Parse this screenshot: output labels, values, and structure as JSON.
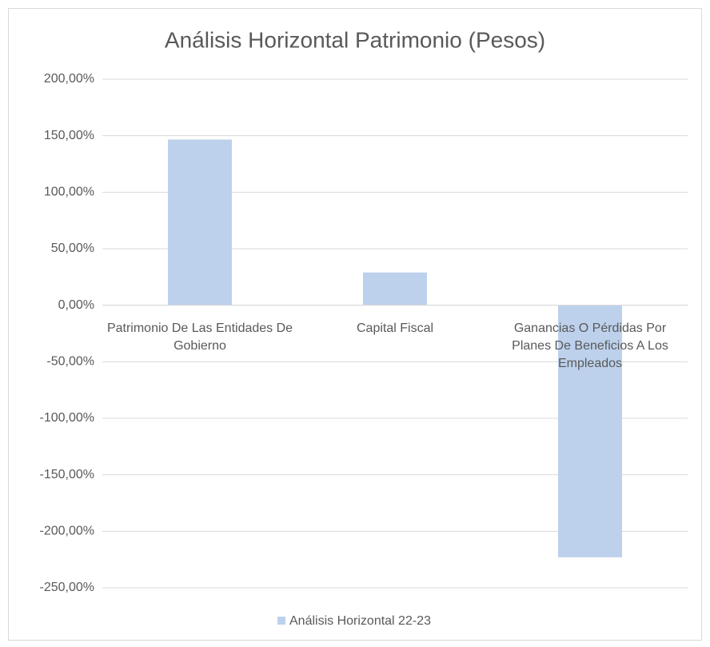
{
  "chart_data": {
    "type": "bar",
    "title": "Análisis Horizontal Patrimonio (Pesos)",
    "categories": [
      "Patrimonio De Las Entidades De Gobierno",
      "Capital Fiscal",
      "Ganancias O Pérdidas Por Planes De Beneficios A Los Empleados"
    ],
    "series": [
      {
        "name": "Análisis Horizontal 22-23",
        "color": "#bdd1ec",
        "values": [
          146.6,
          29,
          -223
        ]
      }
    ],
    "ylim": [
      -250,
      200
    ],
    "yticks": [
      {
        "value": -250,
        "label": "-250,00%"
      },
      {
        "value": -200,
        "label": "-200,00%"
      },
      {
        "value": -150,
        "label": "-150,00%"
      },
      {
        "value": -100,
        "label": "-100,00%"
      },
      {
        "value": -50,
        "label": "-50,00%"
      },
      {
        "value": 0,
        "label": "0,00%"
      },
      {
        "value": 50,
        "label": "50,00%"
      },
      {
        "value": 100,
        "label": "100,00%"
      },
      {
        "value": 150,
        "label": "150,00%"
      },
      {
        "value": 200,
        "label": "200,00%"
      }
    ],
    "grid": true,
    "legend": "bottom"
  }
}
